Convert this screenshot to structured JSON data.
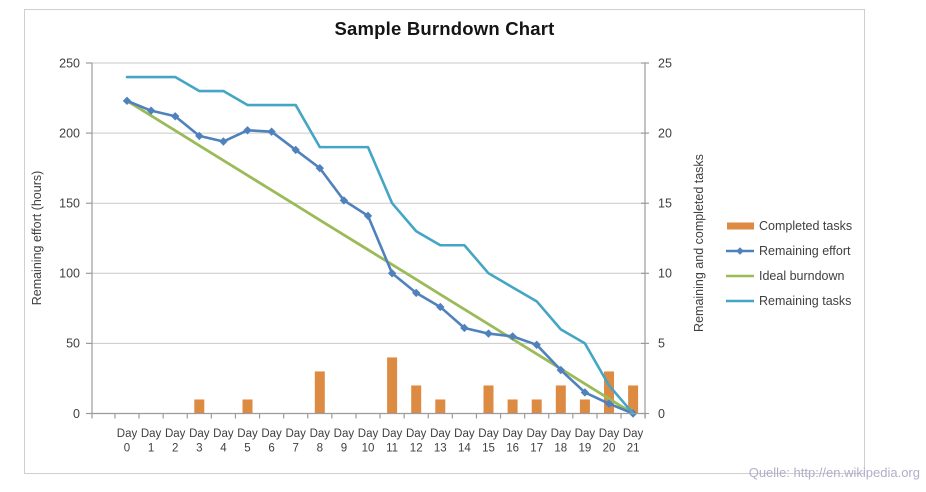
{
  "watermark": {
    "text": "Quelle: http://en.wikipedia.org",
    "color": "#b2adc9"
  },
  "chart_data": {
    "type": "bar",
    "title": "Sample Burndown Chart",
    "x_label_word": "Day",
    "categories": [
      0,
      1,
      2,
      3,
      4,
      5,
      6,
      7,
      8,
      9,
      10,
      11,
      12,
      13,
      14,
      15,
      16,
      17,
      18,
      19,
      20,
      21
    ],
    "left_axis": {
      "label": "Remaining effort (hours)",
      "min": 0,
      "max": 250,
      "step": 50
    },
    "right_axis": {
      "label": "Remaining and completed tasks",
      "min": 0,
      "max": 25,
      "step": 5
    },
    "grid": true,
    "legend_position": "right",
    "series": [
      {
        "name": "Completed tasks",
        "type": "bar",
        "axis": "right",
        "color": "#dd8a43",
        "values": [
          0,
          0,
          0,
          1,
          0,
          1,
          0,
          0,
          3,
          0,
          0,
          4,
          2,
          1,
          0,
          2,
          1,
          1,
          2,
          1,
          3,
          2
        ]
      },
      {
        "name": "Remaining effort",
        "type": "line",
        "axis": "left",
        "color": "#4f81bd",
        "marker": "diamond",
        "values": [
          223,
          216,
          212,
          198,
          194,
          202,
          201,
          188,
          175,
          152,
          141,
          100,
          86,
          76,
          61,
          57,
          55,
          49,
          31,
          15,
          7,
          0
        ]
      },
      {
        "name": "Ideal burndown",
        "type": "line",
        "axis": "left",
        "color": "#9bbb59",
        "marker": "none",
        "values": [
          223,
          212.4,
          201.8,
          191.1,
          180.5,
          169.9,
          159.3,
          148.7,
          138,
          127.4,
          116.8,
          106.2,
          95.6,
          84.9,
          74.3,
          63.7,
          53.1,
          42.5,
          31.9,
          21.2,
          10.6,
          0
        ]
      },
      {
        "name": "Remaining tasks",
        "type": "line",
        "axis": "right",
        "color": "#45a5c5",
        "marker": "none",
        "values": [
          24,
          24,
          24,
          23,
          23,
          22,
          22,
          22,
          19,
          19,
          19,
          15,
          13,
          12,
          12,
          10,
          9,
          8,
          6,
          5,
          2,
          0
        ]
      }
    ]
  }
}
